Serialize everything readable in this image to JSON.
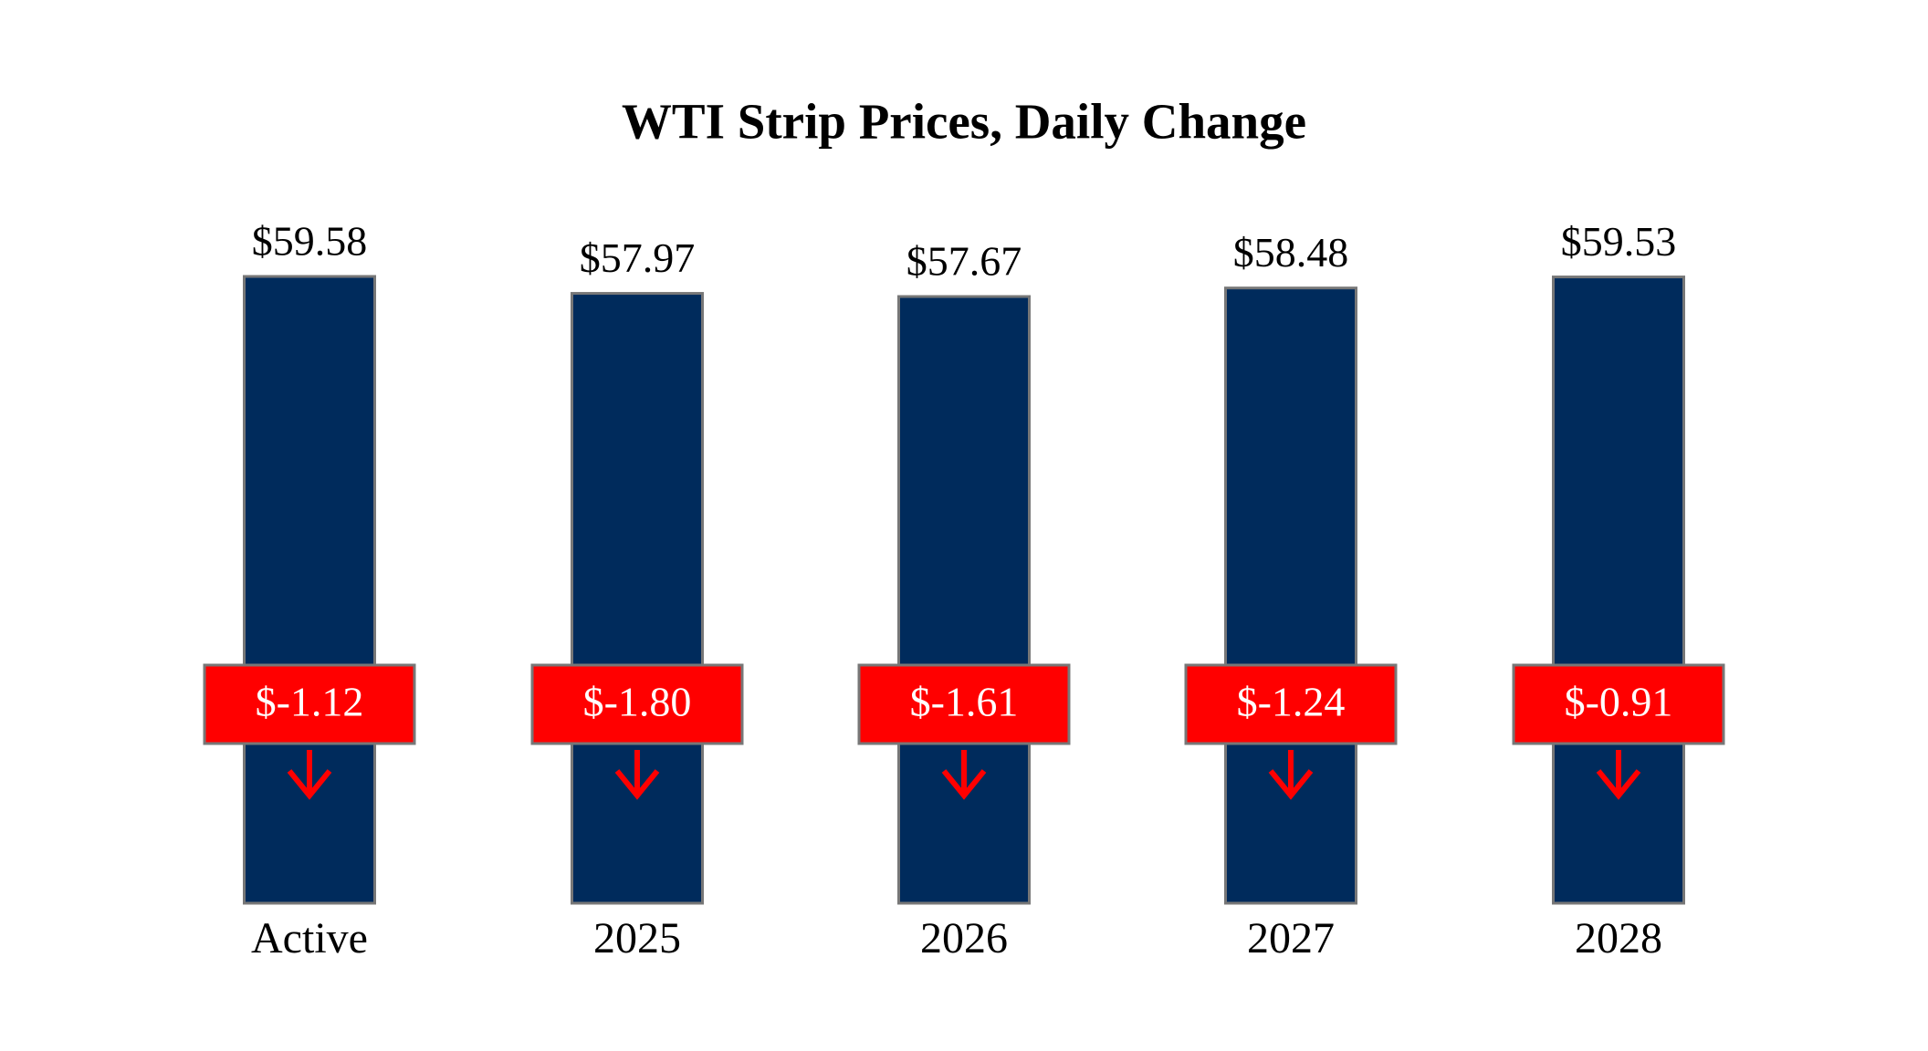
{
  "chart_data": {
    "type": "bar",
    "title": "WTI Strip Prices, Daily Change",
    "categories": [
      "Active",
      "2025",
      "2026",
      "2027",
      "2028"
    ],
    "values": [
      59.58,
      57.97,
      57.67,
      58.48,
      59.53
    ],
    "value_labels": [
      "$59.58",
      "$57.97",
      "$57.67",
      "$58.48",
      "$59.53"
    ],
    "changes": [
      -1.12,
      -1.8,
      -1.61,
      -1.24,
      -0.91
    ],
    "change_labels": [
      "$-1.12",
      "$-1.80",
      "$-1.61",
      "$-1.24",
      "$-0.91"
    ],
    "color": "#002b5c",
    "change_color": "#ff0000"
  }
}
